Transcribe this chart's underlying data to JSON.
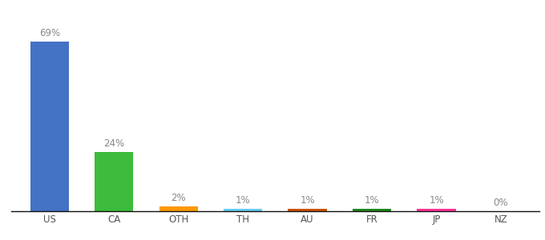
{
  "categories": [
    "US",
    "CA",
    "OTH",
    "TH",
    "AU",
    "FR",
    "JP",
    "NZ"
  ],
  "values": [
    69,
    24,
    2,
    1,
    1,
    1,
    1,
    0
  ],
  "labels": [
    "69%",
    "24%",
    "2%",
    "1%",
    "1%",
    "1%",
    "1%",
    "0%"
  ],
  "bar_colors": [
    "#4472c4",
    "#3dbb3d",
    "#ff9900",
    "#66ccee",
    "#cc5500",
    "#228822",
    "#ff3399",
    "#aaaaaa"
  ],
  "background_color": "#ffffff",
  "ylim": [
    0,
    78
  ],
  "label_fontsize": 8.5,
  "tick_fontsize": 8.5,
  "bar_width": 0.6,
  "label_color": "#888888"
}
